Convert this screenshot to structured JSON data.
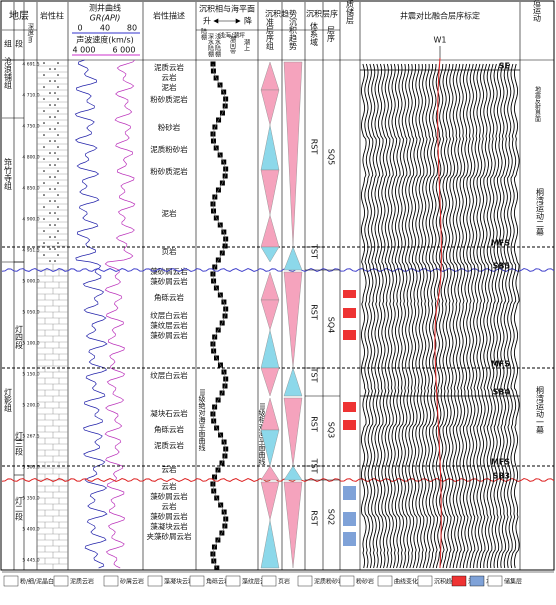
{
  "header": {
    "strata": "地层",
    "formation": "组",
    "member": "段",
    "depth": "深度/m",
    "lith_column": "岩性柱",
    "log": "测井曲线",
    "gr": "GR(API)",
    "gr_ticks": [
      "0",
      "40",
      "80"
    ],
    "sonic": "声波速度(km/s)",
    "sonic_ticks": [
      "4 000",
      "6 000"
    ],
    "lith_desc": "岩性描述",
    "facies": "沉积相与海平面",
    "rise": "升",
    "fall": "降",
    "shelf": "陆棚",
    "shallow": "浅海/潮坪",
    "deep_shelf": "深水陆棚",
    "shallow_shelf": "浅水陆棚",
    "intertidal": "潮间带",
    "supratidal": "潮上",
    "trend": "沉积趋势",
    "parasequence": "准层序组",
    "trend2": "沉积趋势",
    "sequence": "沉积层序",
    "systems_tract": "体系域",
    "seq": "层序",
    "reservoir": "优质储层",
    "seismic": "井震对比融合层序标定",
    "tectonic": "构造运动"
  },
  "formations": [
    "沧浪铺组",
    "筇竹寺组",
    "灯影组"
  ],
  "members": [
    "灯四段",
    "灯三段",
    "灯二段"
  ],
  "depths": [
    "4 691.5",
    "4 710.0",
    "4 750.0",
    "4 800.0",
    "4 850.0",
    "4 900.0",
    "4 951.5",
    "5 000.0",
    "5 050.0",
    "5 100.0",
    "5 150.0",
    "5 200.0",
    "5 267.5",
    "5 300.0",
    "5 350.0",
    "5 400.0",
    "5 445.0"
  ],
  "lithology": [
    "泥质云岩",
    "云岩",
    "泥岩",
    "粉砂质泥岩",
    "粉砂岩",
    "泥质粉砂岩",
    "粉砂质泥岩",
    "泥岩",
    "页岩",
    "藻砂屑云岩",
    "藻砂屑云岩",
    "角砾云岩",
    "纹层白云岩",
    "藻纹层云岩",
    "藻砂屑云岩",
    "纹层白云岩",
    "凝块石云岩",
    "角砾云岩",
    "泥质云岩",
    "云岩",
    "云岩",
    "藻砂屑云岩",
    "云岩",
    "藻砂屑云岩",
    "藻凝块云岩",
    "夹藻砂屑云岩"
  ],
  "surfaces": [
    "SE",
    "MFS",
    "SB5",
    "MFS",
    "SB4",
    "MFS",
    "SB3"
  ],
  "systems_tracts": [
    "RST",
    "TST",
    "RST",
    "TST",
    "RST",
    "TST",
    "RST"
  ],
  "sequences": [
    "SQ5",
    "SQ4",
    "SQ3",
    "SQ2"
  ],
  "well": "W1",
  "tectonic": {
    "reflection": "地震反射界面",
    "events": [
      "桐湾运动二幕",
      "桐湾运动一幕"
    ]
  },
  "annotations": [
    "III级绝对海平面曲线",
    "III级相对海平面曲线"
  ],
  "legend": [
    "粉/细/泥晶白云岩",
    "泥质云岩",
    "砂屑云岩",
    "藻凝块云岩",
    "角砾云岩",
    "藻纹层云岩",
    "页岩",
    "泥质粉砂岩",
    "粉砂岩",
    "曲线变化趋势",
    "沉积趋势",
    "汽层",
    "水层",
    "储集层"
  ]
}
